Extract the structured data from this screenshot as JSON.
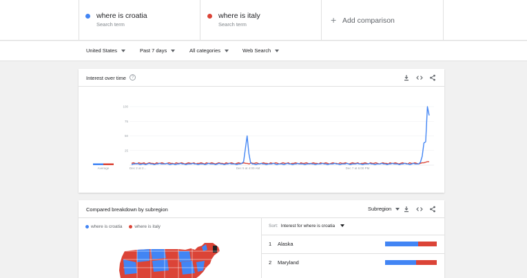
{
  "terms": [
    {
      "name": "where is croatia",
      "sub": "Search term",
      "color": "#4285f4"
    },
    {
      "name": "where is italy",
      "sub": "Search term",
      "color": "#db4437"
    }
  ],
  "add_comparison": "Add comparison",
  "filters": [
    "United States",
    "Past 7 days",
    "All categories",
    "Web Search"
  ],
  "interest_card": {
    "title": "Interest over time",
    "help_glyph": "?",
    "average_label": "Average"
  },
  "chart_data": {
    "type": "line",
    "title": "Interest over time",
    "ylim": [
      0,
      100
    ],
    "yticks": [
      "100",
      "75",
      "50",
      "25"
    ],
    "x_labels": [
      "Dec 2 at 2...",
      "Dec 5 at 4:00 AM",
      "Dec 7 at 6:00 PM"
    ],
    "grid": true,
    "series": [
      {
        "name": "where is croatia",
        "color": "#4285f4",
        "average": 3,
        "values": [
          1,
          2,
          2,
          3,
          2,
          1,
          2,
          2,
          1,
          2,
          3,
          2,
          2,
          1,
          2,
          2,
          3,
          2,
          2,
          2,
          3,
          2,
          1,
          2,
          2,
          1,
          2,
          2,
          3,
          2,
          2,
          1,
          2,
          2,
          2,
          3,
          2,
          2,
          1,
          2,
          2,
          2,
          1,
          2,
          3,
          2,
          2,
          2,
          1,
          2,
          3,
          2,
          2,
          1,
          2,
          2,
          3,
          2,
          2,
          2,
          1,
          2,
          2,
          3,
          6,
          28,
          50,
          20,
          4,
          2,
          2,
          1,
          2,
          2,
          3,
          2,
          2,
          1,
          2,
          2,
          2,
          3,
          2,
          1,
          2,
          2,
          2,
          1,
          2,
          3,
          2,
          2,
          1,
          2,
          2,
          3,
          2,
          2,
          2,
          1,
          2,
          2,
          3,
          2,
          2,
          1,
          2,
          2,
          2,
          3,
          2,
          2,
          1,
          2,
          2,
          2,
          3,
          2,
          2,
          1,
          2,
          2,
          2,
          3,
          2,
          1,
          2,
          2,
          2,
          3,
          2,
          2,
          1,
          2,
          2,
          2,
          3,
          2,
          2,
          1,
          2,
          2,
          2,
          3,
          2,
          2,
          1,
          2,
          2,
          3,
          2,
          2,
          2,
          1,
          2,
          2,
          3,
          2,
          2,
          1,
          2,
          3,
          2,
          2,
          2,
          5,
          15,
          38,
          40,
          100,
          85
        ]
      },
      {
        "name": "where is italy",
        "color": "#db4437",
        "average": 3,
        "values": [
          3,
          4,
          3,
          2,
          4,
          3,
          3,
          4,
          2,
          3,
          4,
          3,
          3,
          2,
          4,
          3,
          3,
          4,
          3,
          2,
          3,
          4,
          3,
          3,
          2,
          4,
          3,
          3,
          4,
          3,
          2,
          3,
          4,
          3,
          3,
          4,
          2,
          3,
          3,
          4,
          3,
          2,
          4,
          3,
          3,
          4,
          3,
          2,
          3,
          4,
          3,
          3,
          2,
          4,
          3,
          3,
          4,
          3,
          2,
          3,
          4,
          3,
          3,
          4,
          3,
          3,
          2,
          4,
          3,
          3,
          4,
          3,
          2,
          3,
          4,
          3,
          3,
          2,
          4,
          3,
          3,
          4,
          3,
          2,
          3,
          4,
          3,
          3,
          4,
          2,
          3,
          3,
          4,
          3,
          2,
          4,
          3,
          3,
          4,
          3,
          2,
          3,
          4,
          3,
          3,
          2,
          4,
          3,
          3,
          4,
          3,
          2,
          3,
          4,
          3,
          3,
          2,
          4,
          3,
          3,
          4,
          3,
          2,
          3,
          4,
          3,
          3,
          4,
          2,
          3,
          3,
          4,
          3,
          2,
          4,
          3,
          3,
          4,
          3,
          2,
          3,
          4,
          3,
          3,
          2,
          4,
          3,
          3,
          4,
          3,
          2,
          3,
          4,
          3,
          3,
          2,
          4,
          3,
          3,
          4,
          3,
          2,
          3,
          4,
          4,
          5,
          6,
          6
        ]
      }
    ]
  },
  "breakdown_card": {
    "title": "Compared breakdown by subregion",
    "selector": "Subregion",
    "legend": [
      "where is croatia",
      "where is italy"
    ],
    "sort_label": "Sort:",
    "sort_value": "Interest for where is croatia",
    "rows": [
      {
        "rank": "1",
        "name": "Alaska",
        "croatia": 64,
        "italy": 36
      },
      {
        "rank": "2",
        "name": "Maryland",
        "croatia": 60,
        "italy": 40
      }
    ]
  },
  "icons": [
    "download-icon",
    "embed-icon",
    "share-icon"
  ],
  "colors": {
    "croatia": "#4285f4",
    "italy": "#db4437"
  }
}
